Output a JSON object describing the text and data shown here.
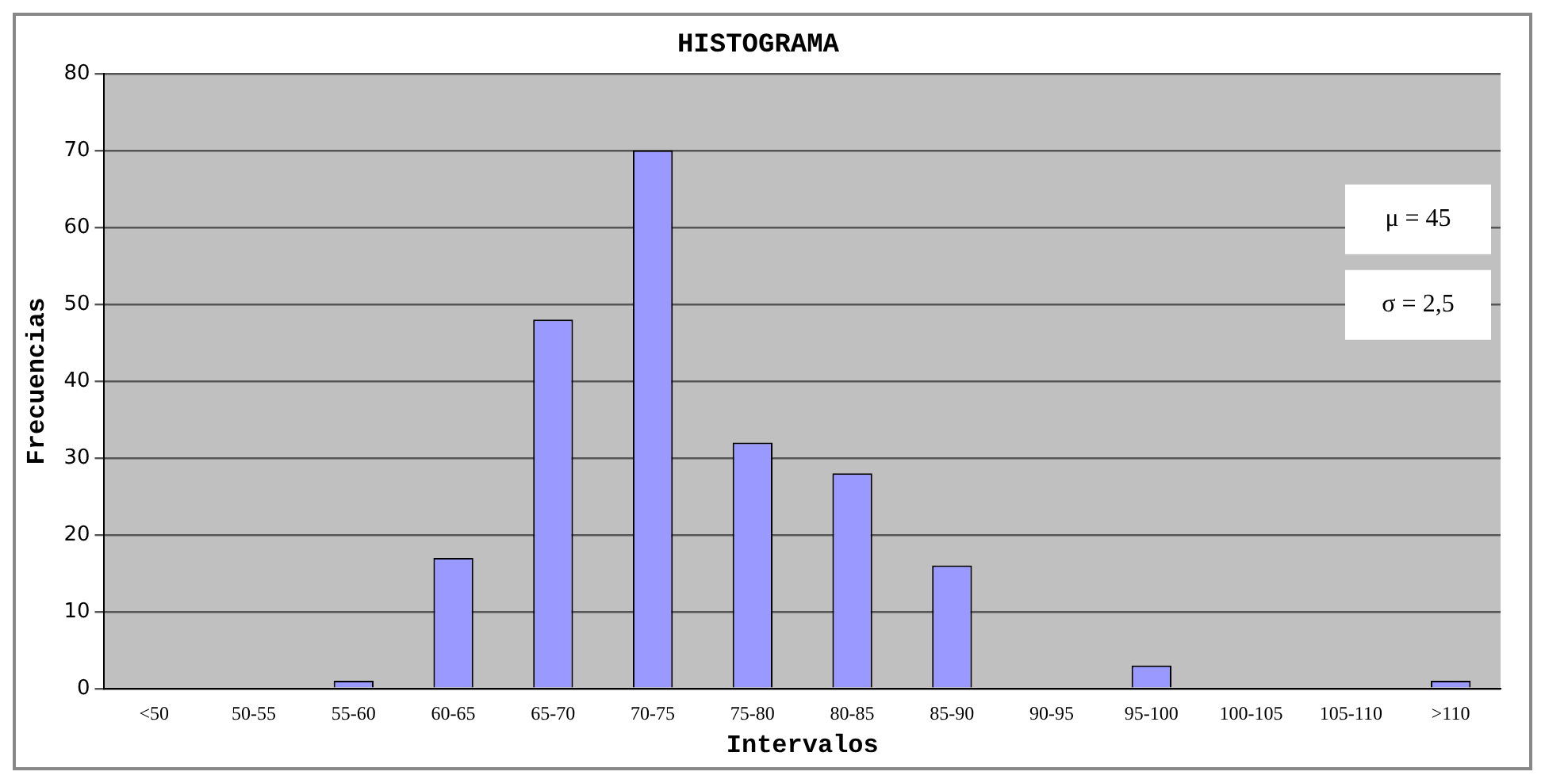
{
  "chart_data": {
    "type": "bar",
    "title": "HISTOGRAMA",
    "xlabel": "Intervalos",
    "ylabel": "Frecuencias",
    "categories": [
      "<50",
      "50-55",
      "55-60",
      "60-65",
      "65-70",
      "70-75",
      "75-80",
      "80-85",
      "85-90",
      "90-95",
      "95-100",
      "100-105",
      "105-110",
      ">110"
    ],
    "values": [
      0,
      0,
      1,
      17,
      48,
      70,
      32,
      28,
      16,
      0,
      3,
      0,
      0,
      1
    ],
    "color": "#9999ff",
    "ylim": [
      0,
      80
    ],
    "yticks": [
      0,
      10,
      20,
      30,
      40,
      50,
      60,
      70,
      80
    ],
    "grid": "y",
    "legend": false,
    "annotations": [
      "μ = 45",
      "σ = 2,5"
    ]
  }
}
